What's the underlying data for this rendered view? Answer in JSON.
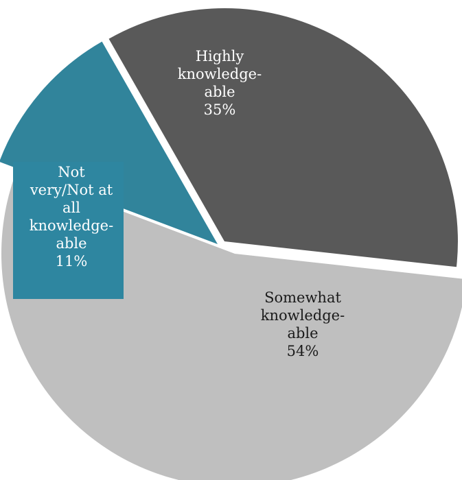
{
  "chart_data": {
    "type": "pie",
    "title": "",
    "slices": [
      {
        "label_lines": [
          "Highly",
          "knowledge-",
          "able"
        ],
        "percent_label": "35%",
        "value": 35,
        "color": "#595959",
        "text_color": "#ffffff"
      },
      {
        "label_lines": [
          "Somewhat",
          "knowledge-",
          "able"
        ],
        "percent_label": "54%",
        "value": 54,
        "color": "#bfbfbf",
        "text_color": "#1a1a1a"
      },
      {
        "label_lines": [
          "Not",
          "very/Not at",
          "all",
          "knowledge-",
          "able"
        ],
        "percent_label": "11%",
        "value": 11,
        "color": "#31849b",
        "text_color": "#ffffff"
      }
    ],
    "legend": "none",
    "data_labels": "inside"
  }
}
